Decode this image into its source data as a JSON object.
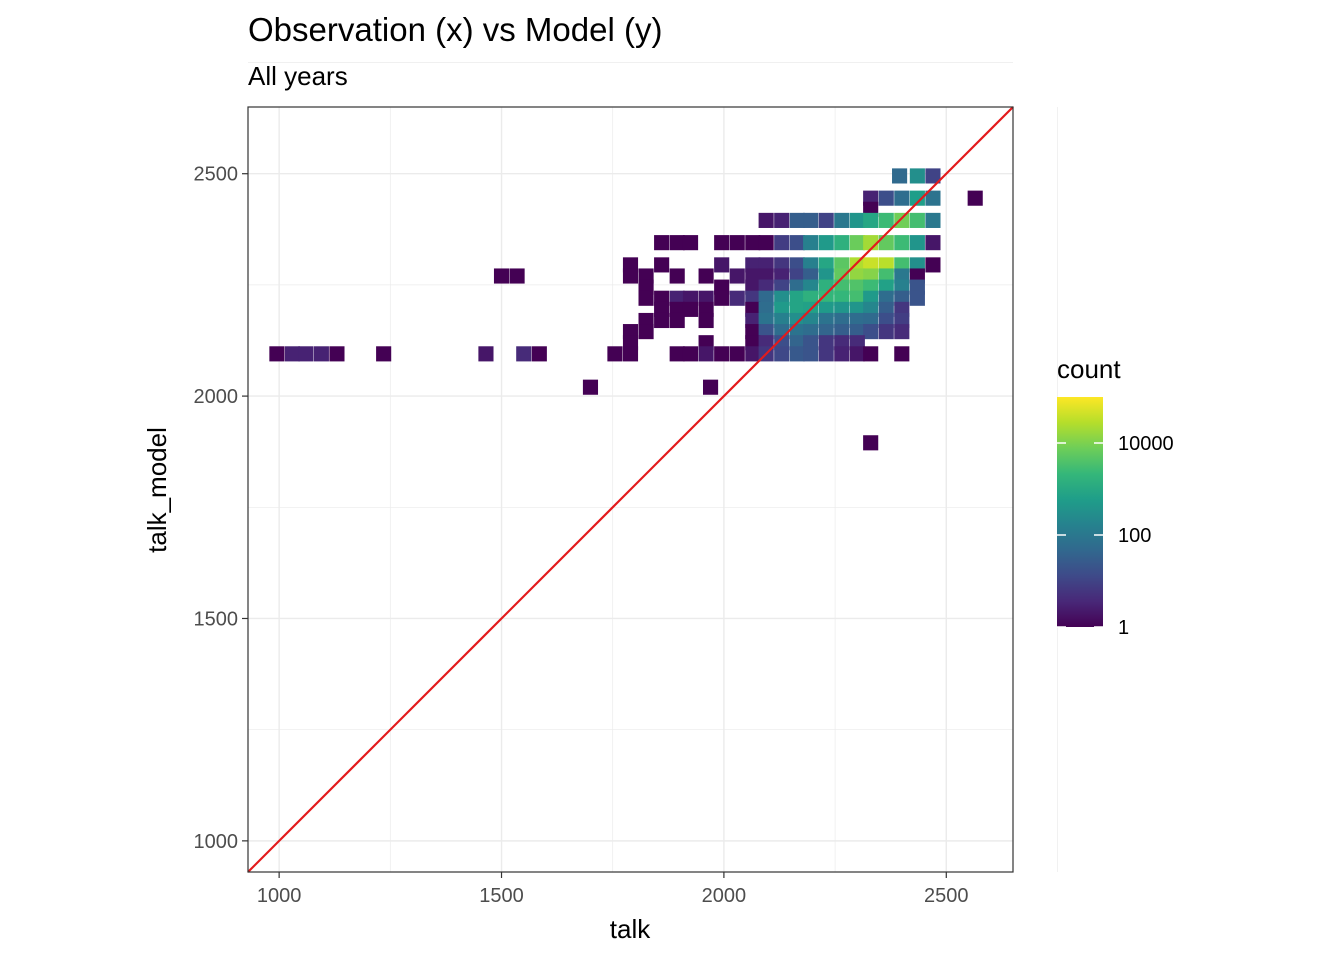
{
  "chart_data": {
    "type": "heatmap",
    "title": "Observation (x) vs Model (y)",
    "subtitle": "All years",
    "xlabel": "talk",
    "ylabel": "talk_model",
    "xlim": [
      930,
      2650
    ],
    "ylim": [
      930,
      2650
    ],
    "x_ticks": [
      1000,
      1500,
      2000,
      2500
    ],
    "y_ticks": [
      1000,
      1500,
      2000,
      2500
    ],
    "bin_width": 34,
    "grid": true,
    "reference_line": {
      "slope": 1,
      "intercept": 0,
      "color": "#e31a1c"
    },
    "legend": {
      "title": "count",
      "position": "right",
      "scale": "log10",
      "breaks": [
        1,
        100,
        10000
      ],
      "break_labels": [
        "1",
        "100",
        "10000"
      ],
      "range": [
        1,
        100000
      ],
      "colors": [
        "#440154",
        "#482878",
        "#3e4a89",
        "#31688e",
        "#26828e",
        "#1f9e89",
        "#35b779",
        "#6ece58",
        "#b5de2b",
        "#fde725"
      ]
    },
    "cells": [
      [
        2565,
        2445,
        1
      ],
      [
        2395,
        2495,
        50
      ],
      [
        2435,
        2495,
        300
      ],
      [
        2470,
        2495,
        10
      ],
      [
        2330,
        2445,
        3
      ],
      [
        2365,
        2445,
        15
      ],
      [
        2400,
        2445,
        60
      ],
      [
        2435,
        2445,
        600
      ],
      [
        2470,
        2445,
        80
      ],
      [
        2330,
        2420,
        1
      ],
      [
        2095,
        2395,
        2
      ],
      [
        2130,
        2395,
        3
      ],
      [
        2165,
        2395,
        30
      ],
      [
        2195,
        2395,
        30
      ],
      [
        2230,
        2395,
        10
      ],
      [
        2265,
        2395,
        100
      ],
      [
        2300,
        2395,
        400
      ],
      [
        2330,
        2395,
        900
      ],
      [
        2365,
        2395,
        2500
      ],
      [
        2400,
        2395,
        8000
      ],
      [
        2435,
        2395,
        3000
      ],
      [
        2470,
        2395,
        100
      ],
      [
        1860,
        2345,
        1
      ],
      [
        1895,
        2345,
        1
      ],
      [
        1925,
        2345,
        1
      ],
      [
        1995,
        2345,
        1
      ],
      [
        2030,
        2345,
        1
      ],
      [
        2065,
        2345,
        1
      ],
      [
        2095,
        2345,
        1
      ],
      [
        2130,
        2345,
        8
      ],
      [
        2165,
        2345,
        15
      ],
      [
        2195,
        2345,
        150
      ],
      [
        2230,
        2345,
        500
      ],
      [
        2265,
        2345,
        1500
      ],
      [
        2300,
        2345,
        7000
      ],
      [
        2330,
        2345,
        20000
      ],
      [
        2365,
        2345,
        6000
      ],
      [
        2400,
        2345,
        2500
      ],
      [
        2435,
        2345,
        400
      ],
      [
        2470,
        2345,
        2
      ],
      [
        1790,
        2295,
        1
      ],
      [
        1860,
        2295,
        1
      ],
      [
        1995,
        2295,
        2
      ],
      [
        2065,
        2295,
        3
      ],
      [
        2095,
        2295,
        3
      ],
      [
        2130,
        2295,
        6
      ],
      [
        2165,
        2295,
        15
      ],
      [
        2195,
        2295,
        150
      ],
      [
        2230,
        2295,
        900
      ],
      [
        2265,
        2295,
        5000
      ],
      [
        2300,
        2295,
        25000
      ],
      [
        2330,
        2295,
        40000
      ],
      [
        2365,
        2295,
        30000
      ],
      [
        2400,
        2295,
        3000
      ],
      [
        2435,
        2295,
        300
      ],
      [
        2470,
        2295,
        1
      ],
      [
        1500,
        2270,
        1
      ],
      [
        1535,
        2270,
        1
      ],
      [
        1790,
        2270,
        1
      ],
      [
        1825,
        2270,
        1
      ],
      [
        1895,
        2270,
        1
      ],
      [
        1960,
        2270,
        1
      ],
      [
        2030,
        2270,
        2
      ],
      [
        2065,
        2270,
        2
      ],
      [
        2095,
        2270,
        2
      ],
      [
        2130,
        2270,
        3
      ],
      [
        2165,
        2270,
        10
      ],
      [
        2195,
        2270,
        30
      ],
      [
        2230,
        2270,
        400
      ],
      [
        2265,
        2270,
        6000
      ],
      [
        2300,
        2270,
        15000
      ],
      [
        2330,
        2270,
        12000
      ],
      [
        2365,
        2270,
        3000
      ],
      [
        2400,
        2270,
        100
      ],
      [
        2435,
        2270,
        1
      ],
      [
        1825,
        2245,
        1
      ],
      [
        1995,
        2245,
        1
      ],
      [
        2065,
        2245,
        2
      ],
      [
        2095,
        2245,
        4
      ],
      [
        2130,
        2245,
        10
      ],
      [
        2165,
        2245,
        60
      ],
      [
        2195,
        2245,
        200
      ],
      [
        2230,
        2245,
        1500
      ],
      [
        2265,
        2245,
        3000
      ],
      [
        2300,
        2245,
        4000
      ],
      [
        2330,
        2245,
        2500
      ],
      [
        2365,
        2245,
        700
      ],
      [
        2400,
        2245,
        150
      ],
      [
        2435,
        2245,
        20
      ],
      [
        1825,
        2220,
        1
      ],
      [
        1860,
        2220,
        1
      ],
      [
        1895,
        2220,
        3
      ],
      [
        1925,
        2220,
        2
      ],
      [
        1960,
        2220,
        2
      ],
      [
        1995,
        2220,
        1
      ],
      [
        2030,
        2220,
        4
      ],
      [
        2065,
        2220,
        6
      ],
      [
        2095,
        2220,
        50
      ],
      [
        2130,
        2220,
        300
      ],
      [
        2165,
        2220,
        800
      ],
      [
        2195,
        2220,
        1500
      ],
      [
        2230,
        2220,
        2000
      ],
      [
        2265,
        2220,
        2000
      ],
      [
        2300,
        2220,
        3000
      ],
      [
        2330,
        2220,
        500
      ],
      [
        2365,
        2220,
        60
      ],
      [
        2400,
        2220,
        30
      ],
      [
        2435,
        2220,
        20
      ],
      [
        1860,
        2195,
        1
      ],
      [
        1895,
        2195,
        1
      ],
      [
        1925,
        2195,
        1
      ],
      [
        1960,
        2195,
        1
      ],
      [
        2065,
        2195,
        1
      ],
      [
        2095,
        2195,
        60
      ],
      [
        2130,
        2195,
        500
      ],
      [
        2165,
        2195,
        800
      ],
      [
        2195,
        2195,
        700
      ],
      [
        2230,
        2195,
        500
      ],
      [
        2265,
        2195,
        400
      ],
      [
        2300,
        2195,
        400
      ],
      [
        2330,
        2195,
        200
      ],
      [
        2365,
        2195,
        30
      ],
      [
        2400,
        2195,
        6
      ],
      [
        1825,
        2170,
        1
      ],
      [
        1860,
        2170,
        1
      ],
      [
        1895,
        2170,
        1
      ],
      [
        1960,
        2170,
        1
      ],
      [
        2065,
        2170,
        3
      ],
      [
        2095,
        2170,
        80
      ],
      [
        2130,
        2170,
        150
      ],
      [
        2165,
        2170,
        300
      ],
      [
        2195,
        2170,
        200
      ],
      [
        2230,
        2170,
        80
      ],
      [
        2265,
        2170,
        60
      ],
      [
        2300,
        2170,
        60
      ],
      [
        2330,
        2170,
        50
      ],
      [
        2365,
        2170,
        15
      ],
      [
        2400,
        2170,
        8
      ],
      [
        1790,
        2145,
        1
      ],
      [
        1825,
        2145,
        1
      ],
      [
        2065,
        2145,
        1
      ],
      [
        2095,
        2145,
        20
      ],
      [
        2130,
        2145,
        60
      ],
      [
        2165,
        2145,
        80
      ],
      [
        2195,
        2145,
        60
      ],
      [
        2230,
        2145,
        40
      ],
      [
        2265,
        2145,
        30
      ],
      [
        2300,
        2145,
        30
      ],
      [
        2330,
        2145,
        15
      ],
      [
        2365,
        2145,
        6
      ],
      [
        2400,
        2145,
        4
      ],
      [
        1790,
        2120,
        1
      ],
      [
        1960,
        2120,
        1
      ],
      [
        2065,
        2120,
        1
      ],
      [
        2095,
        2120,
        4
      ],
      [
        2130,
        2120,
        15
      ],
      [
        2165,
        2120,
        40
      ],
      [
        2195,
        2120,
        20
      ],
      [
        2230,
        2120,
        6
      ],
      [
        2265,
        2120,
        4
      ],
      [
        2300,
        2120,
        4
      ],
      [
        995,
        2095,
        1
      ],
      [
        1030,
        2095,
        3
      ],
      [
        1060,
        2095,
        3
      ],
      [
        1095,
        2095,
        3
      ],
      [
        1130,
        2095,
        1
      ],
      [
        1235,
        2095,
        1
      ],
      [
        1465,
        2095,
        2
      ],
      [
        1550,
        2095,
        4
      ],
      [
        1585,
        2095,
        1
      ],
      [
        1755,
        2095,
        1
      ],
      [
        1790,
        2095,
        1
      ],
      [
        1895,
        2095,
        1
      ],
      [
        1925,
        2095,
        1
      ],
      [
        1960,
        2095,
        2
      ],
      [
        1995,
        2095,
        1
      ],
      [
        2030,
        2095,
        1
      ],
      [
        2065,
        2095,
        2
      ],
      [
        2095,
        2095,
        6
      ],
      [
        2130,
        2095,
        12
      ],
      [
        2165,
        2095,
        25
      ],
      [
        2195,
        2095,
        20
      ],
      [
        2230,
        2095,
        6
      ],
      [
        2265,
        2095,
        3
      ],
      [
        2300,
        2095,
        2
      ],
      [
        2330,
        2095,
        1
      ],
      [
        2400,
        2095,
        1
      ],
      [
        1700,
        2020,
        1
      ],
      [
        1970,
        2020,
        1
      ],
      [
        2330,
        1895,
        1
      ]
    ]
  }
}
